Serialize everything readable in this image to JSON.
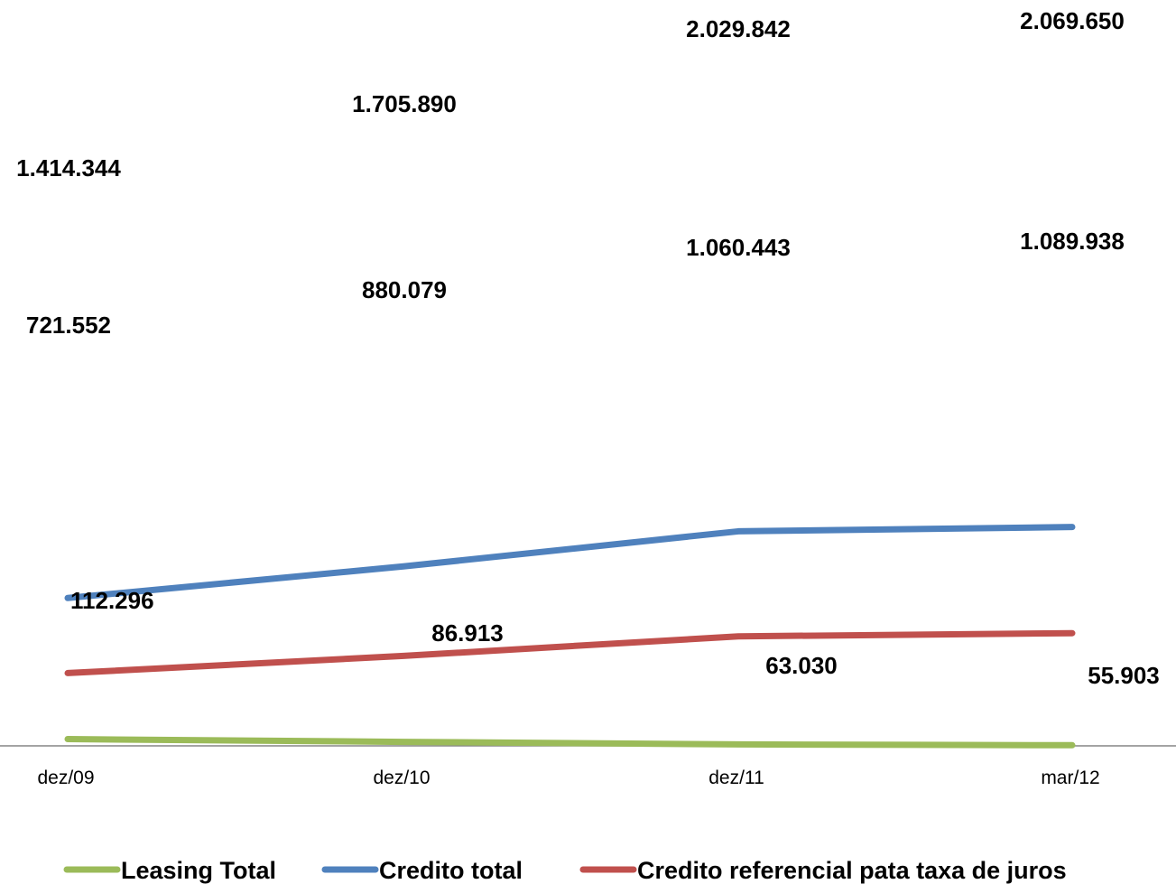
{
  "chart_data": {
    "type": "line",
    "title": "",
    "xlabel": "",
    "ylabel": "",
    "categories": [
      "dez/09",
      "dez/10",
      "dez/11",
      "mar/12"
    ],
    "ylim": [
      0,
      2200000
    ],
    "grid": false,
    "legend_position": "bottom",
    "series": [
      {
        "name": "Leasing Total",
        "color": "#9BBB59",
        "values": [
          112296,
          86913,
          63030,
          55903
        ],
        "labels": [
          "112.296",
          "86.913",
          "63.030",
          "55.903"
        ]
      },
      {
        "name": "Credito total",
        "color": "#4F81BD",
        "values": [
          1414344,
          1705890,
          2029842,
          2069650
        ],
        "labels": [
          "1.414.344",
          "1.705.890",
          "2.029.842",
          "2.069.650"
        ]
      },
      {
        "name": "Credito referencial pata taxa de juros",
        "color": "#C0504D",
        "values": [
          721552,
          880079,
          1060443,
          1089938
        ],
        "labels": [
          "721.552",
          "880.079",
          "1.060.443",
          "1.089.938"
        ]
      }
    ]
  }
}
